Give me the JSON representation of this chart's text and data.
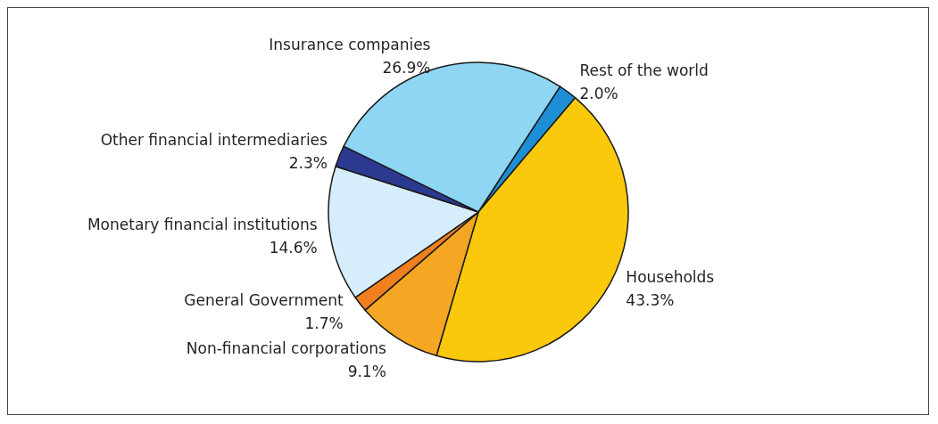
{
  "chart_data": {
    "type": "pie",
    "categories": [
      "Rest of the world",
      "Households",
      "Non-financial corporations",
      "General Government",
      "Monetary financial institutions",
      "Other financial intermediaries",
      "Insurance companies"
    ],
    "values": [
      2.0,
      43.3,
      9.1,
      1.7,
      14.6,
      2.3,
      26.9
    ],
    "value_labels": [
      "2.0%",
      "43.3%",
      "9.1%",
      "1.7%",
      "14.6%",
      "2.3%",
      "26.9%"
    ],
    "colors": [
      "#1e8fd5",
      "#fbc90b",
      "#f5a623",
      "#f07f1e",
      "#d6eefb",
      "#2b3990",
      "#8fd6f5"
    ]
  }
}
